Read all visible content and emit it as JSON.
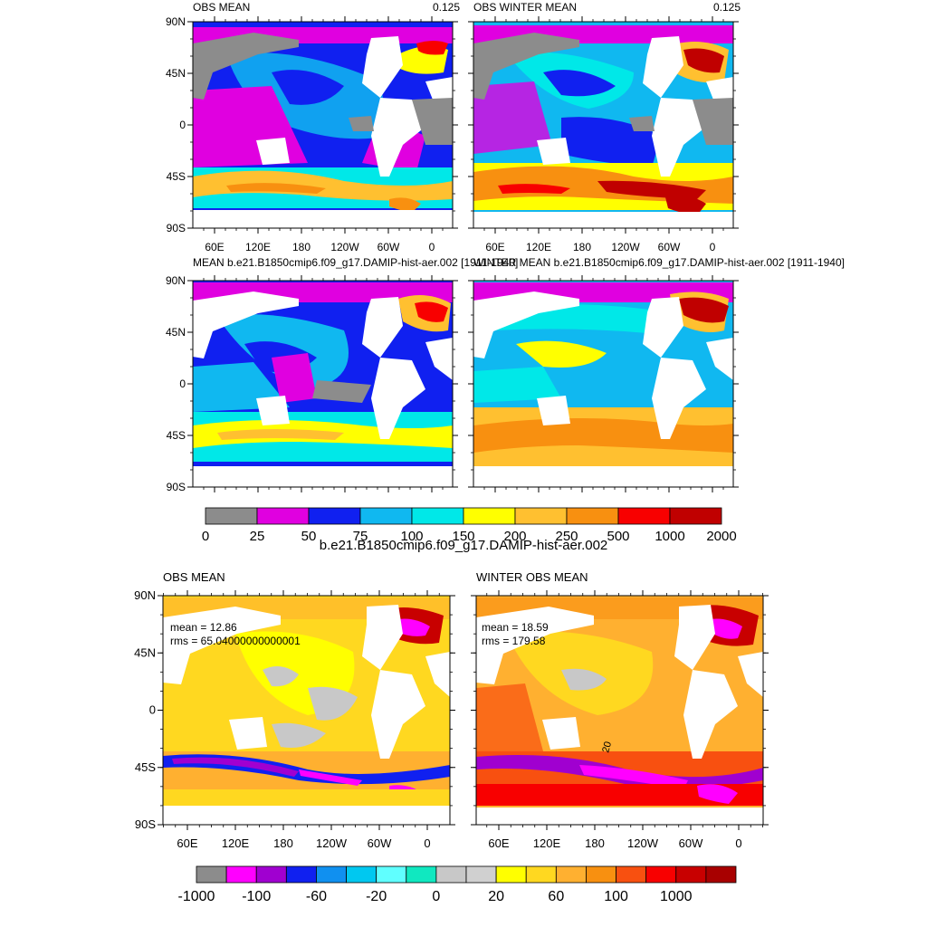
{
  "lat_ticks": [
    "90N",
    "45N",
    "0",
    "45S",
    "90S"
  ],
  "lon_ticks": [
    "60E",
    "120E",
    "180",
    "120W",
    "60W",
    "0"
  ],
  "top_colorbar": {
    "labels": [
      "0",
      "25",
      "50",
      "75",
      "100",
      "150",
      "200",
      "250",
      "500",
      "1000",
      "2000"
    ],
    "colors": [
      "#8c8c8c",
      "#e000e0",
      "#1020f0",
      "#10b8f0",
      "#00e8e8",
      "#ffff00",
      "#ffc030",
      "#f89010",
      "#f80000",
      "#c00000"
    ],
    "title": "b.e21.B1850cmip6.f09_g17.DAMIP-hist-aer.002"
  },
  "bottom_colorbar": {
    "labels": [
      "-1000",
      "-100",
      "-60",
      "-20",
      "0",
      "20",
      "60",
      "100",
      "1000"
    ],
    "colors": [
      "#8c8c8c",
      "#ff00ff",
      "#a000d0",
      "#1020f0",
      "#1090f0",
      "#00c8f0",
      "#60ffff",
      "#10e8c0",
      "#c8c8c8",
      "#d0d0d0",
      "#ffff00",
      "#ffd820",
      "#ffb030",
      "#f89010",
      "#f85010",
      "#f80000",
      "#c80000",
      "#a80000"
    ]
  },
  "chart_data": [
    {
      "type": "heatmap",
      "title": "OBS MEAN",
      "annotation": "0.125"
    },
    {
      "type": "heatmap",
      "title": "OBS WINTER MEAN",
      "annotation": "0.125"
    },
    {
      "type": "heatmap",
      "title": "MEAN b.e21.B1850cmip6.f09_g17.DAMIP-hist-aer.002 [1911-1940]"
    },
    {
      "type": "heatmap",
      "title": "WINTER MEAN b.e21.B1850cmip6.f09_g17.DAMIP-hist-aer.002 [1911-1940]"
    },
    {
      "type": "heatmap",
      "title": "OBS MEAN",
      "stats": {
        "mean": "mean = 12.86",
        "rms": "rms = 65.04000000000001"
      }
    },
    {
      "type": "heatmap",
      "title": "WINTER OBS MEAN",
      "stats": {
        "mean": "mean = 18.59",
        "rms": "rms = 179.58"
      },
      "contour_label": "20"
    }
  ]
}
